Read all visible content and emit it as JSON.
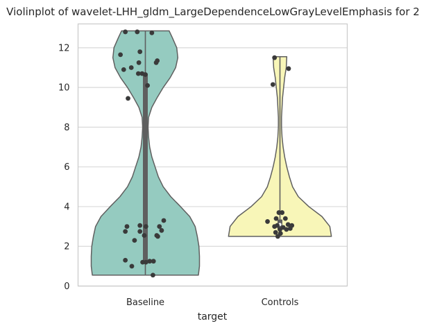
{
  "chart_data": {
    "type": "violin",
    "title": "Violinplot of wavelet-LHH_gldm_LargeDependenceLowGrayLevelEmphasis for 2",
    "xlabel": "target",
    "ylabel": "",
    "categories": [
      "Baseline",
      "Controls"
    ],
    "ylim": [
      0,
      13.2
    ],
    "yticks": [
      0,
      2,
      4,
      6,
      8,
      10,
      12
    ],
    "grid": true,
    "colors": {
      "Baseline": "#95cbc0",
      "Controls": "#f8f6b8",
      "outline": "#5f5f5f",
      "points": "#3a3a3a",
      "grid": "#d9d9d9",
      "frame": "#cccccc"
    },
    "violins": [
      {
        "category": "Baseline",
        "min": 0.55,
        "max": 12.85,
        "half_width": 1.0,
        "box": {
          "q1": 1.25,
          "q3": 10.7,
          "median": 3.0
        },
        "density": [
          [
            0.55,
            0.98
          ],
          [
            1.0,
            1.0
          ],
          [
            1.5,
            1.0
          ],
          [
            2.0,
            0.99
          ],
          [
            2.5,
            0.96
          ],
          [
            3.0,
            0.92
          ],
          [
            3.5,
            0.82
          ],
          [
            4.0,
            0.65
          ],
          [
            4.5,
            0.47
          ],
          [
            5.0,
            0.33
          ],
          [
            5.5,
            0.24
          ],
          [
            6.0,
            0.18
          ],
          [
            6.5,
            0.12
          ],
          [
            7.0,
            0.08
          ],
          [
            7.5,
            0.06
          ],
          [
            8.0,
            0.05
          ],
          [
            8.5,
            0.06
          ],
          [
            9.0,
            0.12
          ],
          [
            9.5,
            0.22
          ],
          [
            10.0,
            0.33
          ],
          [
            10.5,
            0.46
          ],
          [
            11.0,
            0.56
          ],
          [
            11.5,
            0.6
          ],
          [
            12.0,
            0.58
          ],
          [
            12.5,
            0.5
          ],
          [
            12.85,
            0.44
          ]
        ],
        "points": [
          [
            -0.37,
            12.8
          ],
          [
            -0.15,
            12.8
          ],
          [
            0.12,
            12.75
          ],
          [
            -0.1,
            11.8
          ],
          [
            -0.46,
            11.65
          ],
          [
            0.22,
            11.35
          ],
          [
            0.2,
            11.25
          ],
          [
            -0.12,
            11.25
          ],
          [
            -0.26,
            11.0
          ],
          [
            -0.4,
            10.9
          ],
          [
            -0.06,
            10.7
          ],
          [
            -0.13,
            10.7
          ],
          [
            0.0,
            10.65
          ],
          [
            0.04,
            10.1
          ],
          [
            -0.32,
            9.45
          ],
          [
            0.34,
            3.3
          ],
          [
            -0.1,
            3.05
          ],
          [
            -0.34,
            3.0
          ],
          [
            0.01,
            3.0
          ],
          [
            0.26,
            3.0
          ],
          [
            -0.37,
            2.75
          ],
          [
            0.3,
            2.8
          ],
          [
            -0.1,
            2.75
          ],
          [
            0.21,
            2.55
          ],
          [
            -0.02,
            2.55
          ],
          [
            0.23,
            2.5
          ],
          [
            -0.2,
            2.3
          ],
          [
            -0.37,
            1.3
          ],
          [
            0.15,
            1.25
          ],
          [
            0.08,
            1.25
          ],
          [
            0.01,
            1.2
          ],
          [
            -0.05,
            1.2
          ],
          [
            -0.25,
            1.0
          ],
          [
            0.14,
            0.55
          ]
        ]
      },
      {
        "category": "Controls",
        "min": 2.5,
        "max": 11.55,
        "half_width": 0.97,
        "box": {
          "q1": 2.85,
          "q3": 3.35,
          "median": 3.1
        },
        "density": [
          [
            2.5,
            0.98
          ],
          [
            3.0,
            0.95
          ],
          [
            3.5,
            0.8
          ],
          [
            4.0,
            0.55
          ],
          [
            4.5,
            0.35
          ],
          [
            5.0,
            0.24
          ],
          [
            5.5,
            0.18
          ],
          [
            6.0,
            0.13
          ],
          [
            6.5,
            0.09
          ],
          [
            7.0,
            0.06
          ],
          [
            7.5,
            0.04
          ],
          [
            8.0,
            0.03
          ],
          [
            8.5,
            0.03
          ],
          [
            9.0,
            0.04
          ],
          [
            9.5,
            0.05
          ],
          [
            10.0,
            0.07
          ],
          [
            10.5,
            0.09
          ],
          [
            11.0,
            0.12
          ],
          [
            11.55,
            0.13
          ]
        ],
        "points": [
          [
            -0.1,
            11.5
          ],
          [
            0.16,
            10.95
          ],
          [
            -0.13,
            10.15
          ],
          [
            -0.02,
            3.7
          ],
          [
            0.04,
            3.7
          ],
          [
            0.1,
            3.4
          ],
          [
            -0.07,
            3.4
          ],
          [
            -0.23,
            3.25
          ],
          [
            0.15,
            3.1
          ],
          [
            0.22,
            3.05
          ],
          [
            -0.05,
            3.05
          ],
          [
            -0.1,
            3.0
          ],
          [
            0.06,
            2.95
          ],
          [
            0.19,
            2.9
          ],
          [
            0.12,
            2.85
          ],
          [
            0.0,
            2.85
          ],
          [
            -0.08,
            2.7
          ],
          [
            0.01,
            2.65
          ],
          [
            -0.04,
            2.5
          ]
        ]
      }
    ]
  }
}
